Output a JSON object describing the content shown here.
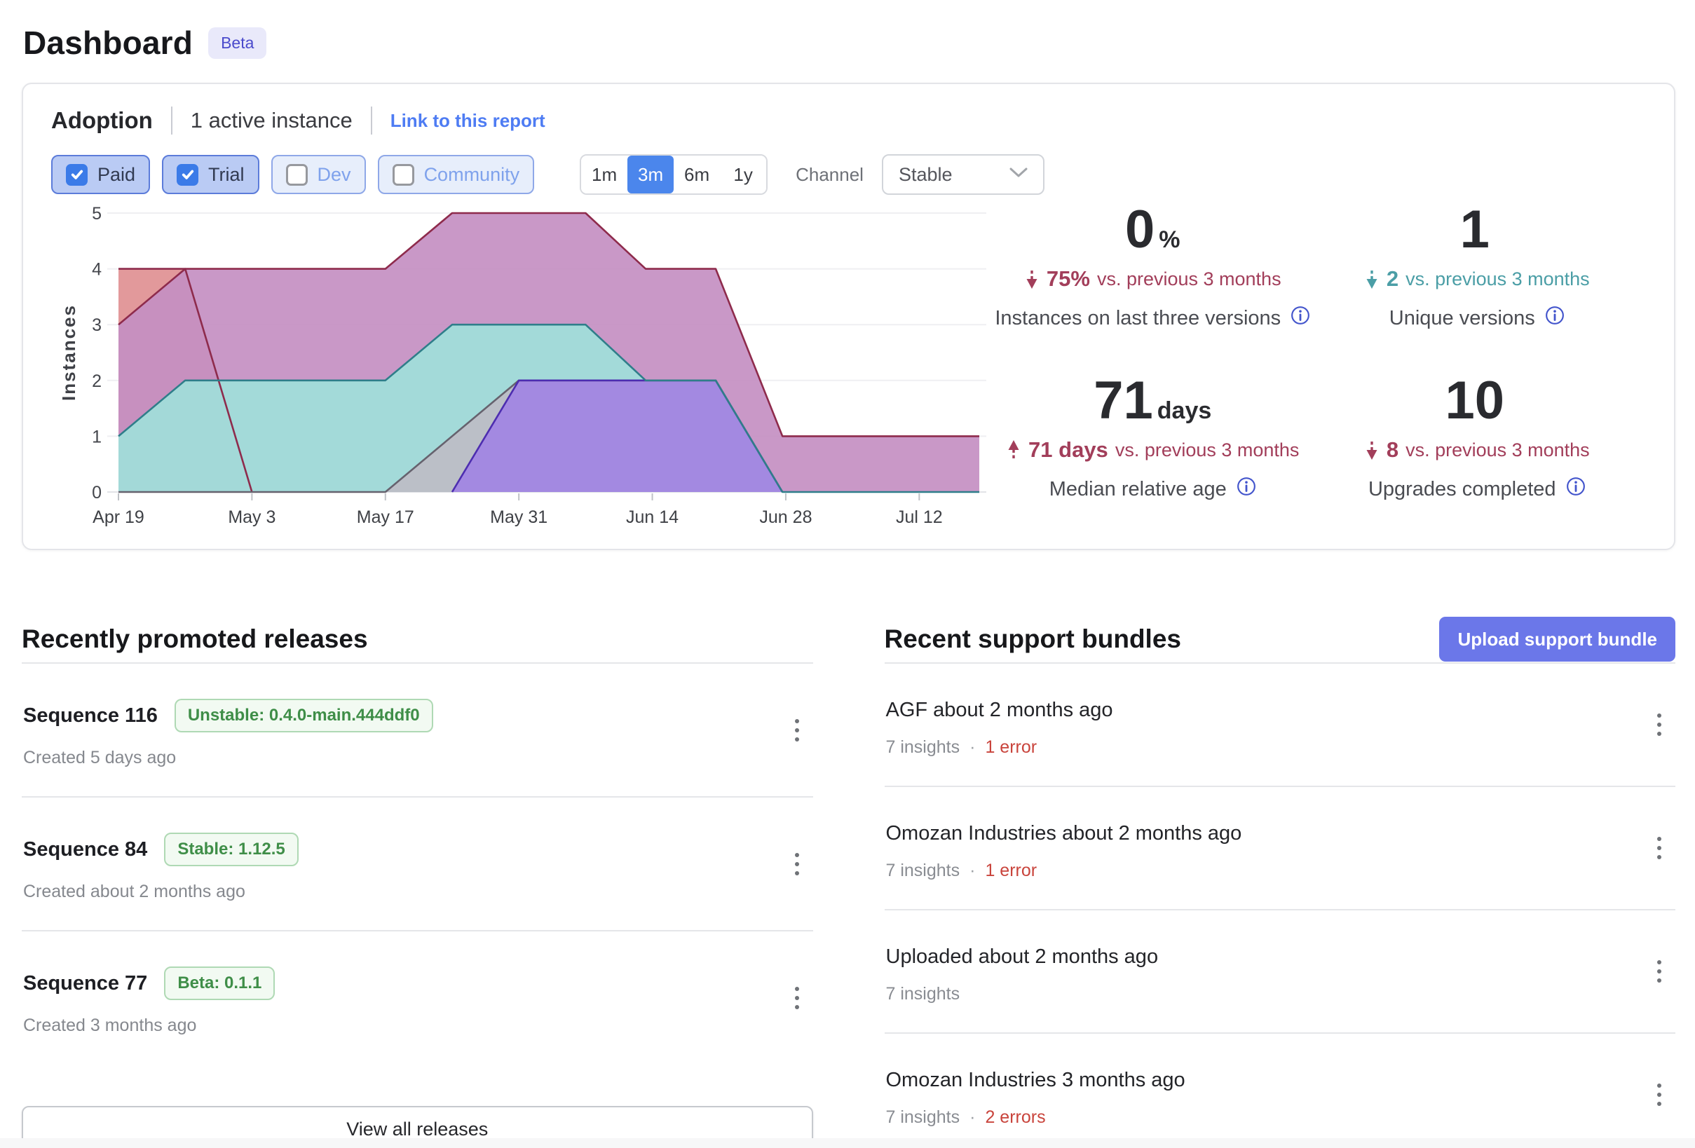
{
  "page": {
    "title": "Dashboard",
    "badge": "Beta"
  },
  "adoption": {
    "title": "Adoption",
    "subtitle": "1 active instance",
    "link": "Link to this report",
    "filters": [
      {
        "label": "Paid",
        "checked": true
      },
      {
        "label": "Trial",
        "checked": true
      },
      {
        "label": "Dev",
        "checked": false
      },
      {
        "label": "Community",
        "checked": false
      }
    ],
    "ranges": [
      {
        "label": "1m",
        "selected": false
      },
      {
        "label": "3m",
        "selected": true
      },
      {
        "label": "6m",
        "selected": false
      },
      {
        "label": "1y",
        "selected": false
      }
    ],
    "channel_label": "Channel",
    "channel_value": "Stable",
    "stats": [
      {
        "value": "0",
        "unit": "%",
        "direction": "down",
        "tone": "red",
        "delta": "75%",
        "delta_rest": "vs. previous 3 months",
        "label": "Instances on last three versions"
      },
      {
        "value": "1",
        "unit": "",
        "direction": "down",
        "tone": "teal",
        "delta": "2",
        "delta_rest": "vs. previous 3 months",
        "label": "Unique versions"
      },
      {
        "value": "71",
        "unit": "days",
        "direction": "up",
        "tone": "red",
        "delta": "71 days",
        "delta_rest": "vs. previous 3 months",
        "label": "Median relative age"
      },
      {
        "value": "10",
        "unit": "",
        "direction": "down",
        "tone": "red",
        "delta": "8",
        "delta_rest": "vs. previous 3 months",
        "label": "Upgrades completed"
      }
    ]
  },
  "chart_data": {
    "type": "area",
    "title": "",
    "xlabel": "",
    "ylabel": "Instances",
    "ylim": [
      0,
      5
    ],
    "grid": true,
    "legend": "none",
    "x_ticks": [
      "Apr 19",
      "May 3",
      "May 17",
      "May 31",
      "Jun 14",
      "Jun 28",
      "Jul 12"
    ],
    "x_tick_weeks": [
      0,
      2,
      4,
      6,
      8,
      10,
      12
    ],
    "x_range_weeks": [
      0,
      12.9
    ],
    "series": [
      {
        "name": "series-1",
        "fill": "#E09093",
        "stroke": "#8E2B4C",
        "points": [
          [
            0,
            4
          ],
          [
            1,
            4
          ],
          [
            2,
            0
          ]
        ]
      },
      {
        "name": "series-2",
        "fill": "#C48FC2",
        "stroke": "#8E2B4C",
        "points": [
          [
            0,
            3
          ],
          [
            1,
            4
          ],
          [
            4,
            4
          ],
          [
            5,
            5
          ],
          [
            7,
            5
          ],
          [
            7.9,
            4
          ],
          [
            8.95,
            4
          ],
          [
            9.95,
            1
          ],
          [
            12.9,
            1
          ]
        ]
      },
      {
        "name": "series-3",
        "fill": "#9FDFDA",
        "stroke": "#2F7E8A",
        "points": [
          [
            0,
            1
          ],
          [
            1,
            2
          ],
          [
            4,
            2
          ],
          [
            5,
            3
          ],
          [
            7,
            3
          ],
          [
            7.9,
            2
          ],
          [
            8.95,
            2
          ],
          [
            9.95,
            0
          ],
          [
            12.9,
            0
          ]
        ]
      },
      {
        "name": "series-4",
        "fill": "#BDBDC5",
        "stroke": "#66626E",
        "points": [
          [
            0,
            0
          ],
          [
            4,
            0
          ],
          [
            6,
            2
          ],
          [
            8.95,
            2
          ],
          [
            9.95,
            0
          ]
        ]
      },
      {
        "name": "series-5",
        "fill": "#A184E3",
        "stroke": "#4D2DB0",
        "points": [
          [
            5,
            0
          ],
          [
            6,
            2
          ],
          [
            8.95,
            2
          ],
          [
            9.95,
            0
          ]
        ]
      }
    ],
    "stroke_order": [
      0,
      1,
      3,
      4,
      2
    ]
  },
  "releases": {
    "heading": "Recently promoted releases",
    "view_all": "View all releases",
    "items": [
      {
        "title": "Sequence 116",
        "badge": "Unstable: 0.4.0-main.444ddf0",
        "created": "Created 5 days ago"
      },
      {
        "title": "Sequence 84",
        "badge": "Stable: 1.12.5",
        "created": "Created about 2 months ago"
      },
      {
        "title": "Sequence 77",
        "badge": "Beta: 0.1.1",
        "created": "Created 3 months ago"
      }
    ]
  },
  "bundles": {
    "heading": "Recent support bundles",
    "upload": "Upload support bundle",
    "separator": "·",
    "items": [
      {
        "title": "AGF about 2 months ago",
        "insights": "7 insights",
        "errors": "1 error"
      },
      {
        "title": "Omozan Industries about 2 months ago",
        "insights": "7 insights",
        "errors": "1 error"
      },
      {
        "title": "Uploaded about 2 months ago",
        "insights": "7 insights",
        "errors": null
      },
      {
        "title": "Omozan Industries 3 months ago",
        "insights": "7 insights",
        "errors": "2 errors"
      }
    ]
  }
}
